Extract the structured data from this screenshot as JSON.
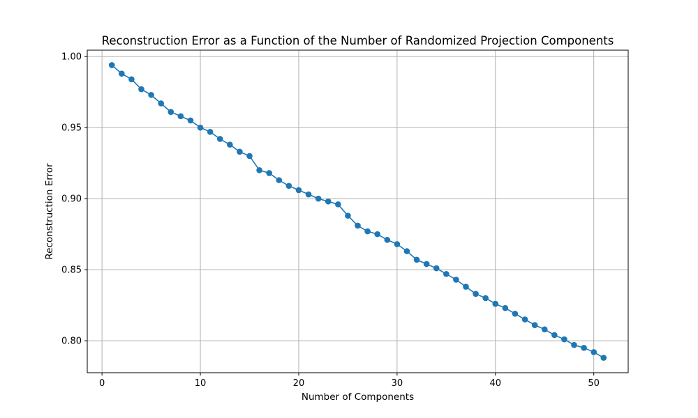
{
  "chart_data": {
    "type": "line",
    "title": "Reconstruction Error as a Function of the Number of Randomized Projection Components",
    "xlabel": "Number of Components",
    "ylabel": "Reconstruction Error",
    "xlim": [
      -1.5,
      53.5
    ],
    "ylim": [
      0.7775,
      1.0045
    ],
    "x_ticks": [
      0,
      10,
      20,
      30,
      40,
      50
    ],
    "y_ticks": [
      0.8,
      0.85,
      0.9,
      0.95,
      1.0
    ],
    "x_tick_labels": [
      "0",
      "10",
      "20",
      "30",
      "40",
      "50"
    ],
    "y_tick_labels": [
      "0.80",
      "0.85",
      "0.90",
      "0.95",
      "1.00"
    ],
    "grid": true,
    "marker": "circle",
    "series": [
      {
        "color": "#1f77b4",
        "x": [
          1,
          2,
          3,
          4,
          5,
          6,
          7,
          8,
          9,
          10,
          11,
          12,
          13,
          14,
          15,
          16,
          17,
          18,
          19,
          20,
          21,
          22,
          23,
          24,
          25,
          26,
          27,
          28,
          29,
          30,
          31,
          32,
          33,
          34,
          35,
          36,
          37,
          38,
          39,
          40,
          41,
          42,
          43,
          44,
          45,
          46,
          47,
          48,
          49,
          50,
          51
        ],
        "y": [
          0.994,
          0.988,
          0.984,
          0.977,
          0.973,
          0.967,
          0.961,
          0.958,
          0.955,
          0.95,
          0.947,
          0.942,
          0.938,
          0.933,
          0.93,
          0.92,
          0.918,
          0.913,
          0.909,
          0.906,
          0.903,
          0.9,
          0.898,
          0.896,
          0.888,
          0.881,
          0.877,
          0.875,
          0.871,
          0.868,
          0.863,
          0.857,
          0.854,
          0.851,
          0.847,
          0.843,
          0.838,
          0.833,
          0.83,
          0.826,
          0.823,
          0.819,
          0.815,
          0.811,
          0.808,
          0.804,
          0.801,
          0.797,
          0.795,
          0.792,
          0.788
        ]
      }
    ]
  }
}
